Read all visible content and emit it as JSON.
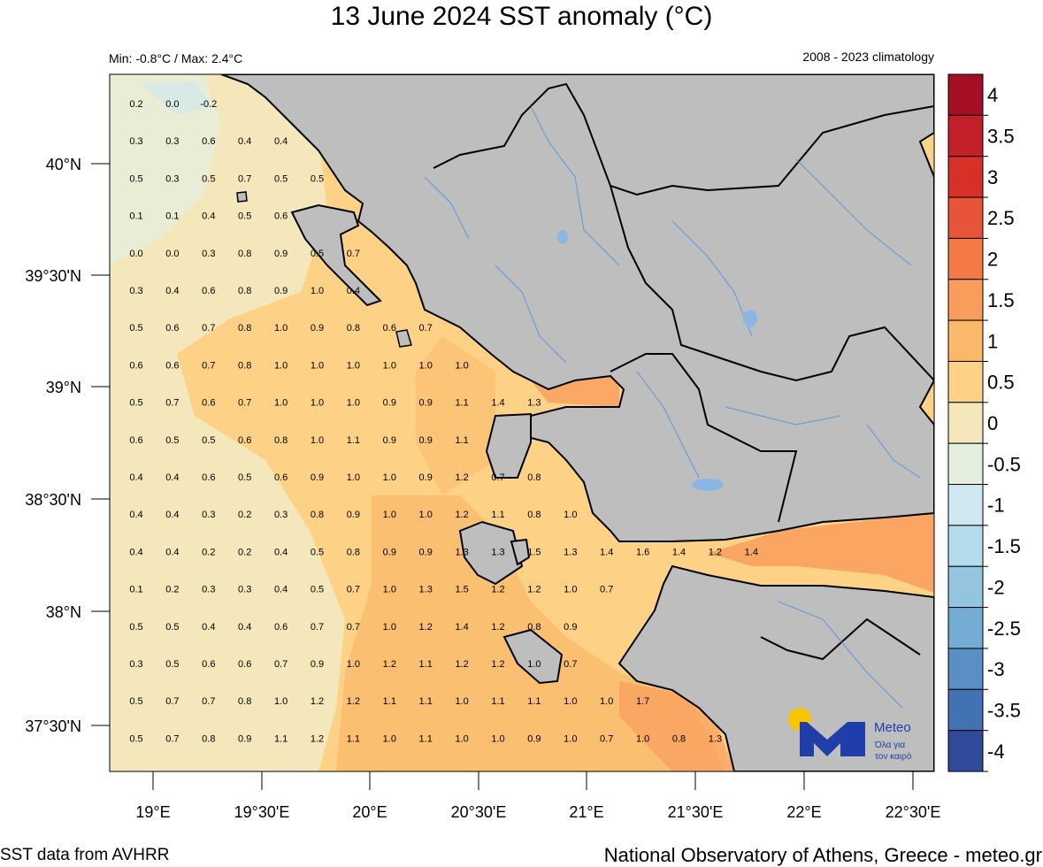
{
  "title": "13 June 2024 SST anomaly (°C)",
  "subtitle_left": "Min: -0.8°C / Max: 2.4°C",
  "subtitle_right": "2008 - 2023 climatology",
  "footer_left": "SST data from AVHRR",
  "footer_right": "National Observatory of Athens, Greece - meteo.gr",
  "logo": {
    "name": "Meteo",
    "tagline_1": "Όλα για",
    "tagline_2": "τον καιρό"
  },
  "chart_data": {
    "type": "heatmap",
    "title": "13 June 2024 SST anomaly (°C)",
    "lon_ticks": [
      "19°E",
      "19°30'E",
      "20°E",
      "20°30'E",
      "21°E",
      "21°30'E",
      "22°E",
      "22°30'E"
    ],
    "lat_ticks": [
      "40°N",
      "39°30'N",
      "39°N",
      "38°30'N",
      "38°N",
      "37°30'N"
    ],
    "colorbar": {
      "labels": [
        "4",
        "3.5",
        "3",
        "2.5",
        "2",
        "1.5",
        "1",
        "0.5",
        "0",
        "-0.5",
        "-1",
        "-1.5",
        "-2",
        "-2.5",
        "-3",
        "-3.5",
        "-4"
      ],
      "colors": [
        "#a50f26",
        "#c4202a",
        "#d73027",
        "#e8543a",
        "#f47a45",
        "#f99d5c",
        "#fbb86b",
        "#fdd286",
        "#f3e7bb",
        "#e4efdf",
        "#cfe8f2",
        "#b4dcec",
        "#93c5e0",
        "#74acd4",
        "#5a8fc5",
        "#4372b4",
        "#314a9a"
      ]
    },
    "value_rows": [
      [
        "0.2",
        "0.0",
        "-0.2"
      ],
      [
        "0.3",
        "0.3",
        "0.6",
        "0.4",
        "0.4"
      ],
      [
        "0.5",
        "0.3",
        "0.5",
        "0.7",
        "0.5",
        "0.5"
      ],
      [
        "0.1",
        "0.1",
        "0.4",
        "0.5",
        "0.6"
      ],
      [
        "0.0",
        "0.0",
        "0.3",
        "0.8",
        "0.9",
        "0.5",
        "0.7"
      ],
      [
        "0.3",
        "0.4",
        "0.6",
        "0.8",
        "0.9",
        "1.0",
        "0.4"
      ],
      [
        "0.5",
        "0.6",
        "0.7",
        "0.8",
        "1.0",
        "0.9",
        "0.8",
        "0.6",
        "0.7"
      ],
      [
        "0.6",
        "0.6",
        "0.7",
        "0.8",
        "1.0",
        "1.0",
        "1.0",
        "1.0",
        "1.0",
        "1.0"
      ],
      [
        "0.5",
        "0.7",
        "0.6",
        "0.7",
        "1.0",
        "1.0",
        "1.0",
        "0.9",
        "0.9",
        "1.1",
        "1.4",
        "1.3"
      ],
      [
        "0.6",
        "0.5",
        "0.5",
        "0.6",
        "0.8",
        "1.0",
        "1.1",
        "0.9",
        "0.9",
        "1.1"
      ],
      [
        "0.4",
        "0.4",
        "0.6",
        "0.5",
        "0.6",
        "0.9",
        "1.0",
        "1.0",
        "0.9",
        "1.2",
        "0.7",
        "0.8"
      ],
      [
        "0.4",
        "0.4",
        "0.3",
        "0.2",
        "0.3",
        "0.8",
        "0.9",
        "1.0",
        "1.0",
        "1.2",
        "1.1",
        "0.8",
        "1.0"
      ],
      [
        "0.4",
        "0.4",
        "0.2",
        "0.2",
        "0.4",
        "0.5",
        "0.8",
        "0.9",
        "0.9",
        "1.3",
        "1.3",
        "1.5",
        "1.3",
        "1.4",
        "1.6",
        "1.4",
        "1.2",
        "1.4"
      ],
      [
        "0.1",
        "0.2",
        "0.3",
        "0.3",
        "0.4",
        "0.5",
        "0.7",
        "1.0",
        "1.3",
        "1.5",
        "1.2",
        "1.2",
        "1.0",
        "0.7"
      ],
      [
        "0.5",
        "0.5",
        "0.4",
        "0.4",
        "0.6",
        "0.7",
        "0.7",
        "1.0",
        "1.2",
        "1.4",
        "1.2",
        "0.8",
        "0.9"
      ],
      [
        "0.3",
        "0.5",
        "0.6",
        "0.6",
        "0.7",
        "0.9",
        "1.0",
        "1.2",
        "1.1",
        "1.2",
        "1.2",
        "1.0",
        "0.7"
      ],
      [
        "0.5",
        "0.7",
        "0.7",
        "0.8",
        "1.0",
        "1.2",
        "1.2",
        "1.1",
        "1.1",
        "1.0",
        "1.1",
        "1.1",
        "1.0",
        "1.0",
        "1.7"
      ],
      [
        "0.5",
        "0.7",
        "0.8",
        "0.9",
        "1.1",
        "1.2",
        "1.1",
        "1.0",
        "1.1",
        "1.0",
        "1.0",
        "0.9",
        "1.0",
        "0.7",
        "1.0",
        "0.8",
        "1.3"
      ]
    ]
  }
}
